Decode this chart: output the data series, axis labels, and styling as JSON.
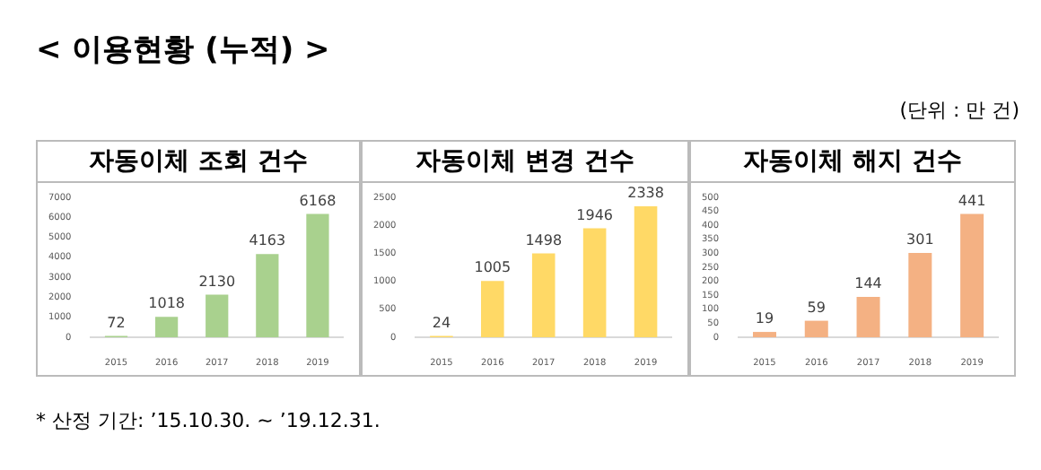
{
  "chart_data": [
    {
      "type": "bar",
      "title": "자동이체 조회 건수",
      "categories": [
        "2015",
        "2016",
        "2017",
        "2018",
        "2019"
      ],
      "values": [
        72,
        1018,
        2130,
        4163,
        6168
      ],
      "color": "#a9d18e",
      "ylim": [
        0,
        7000
      ],
      "yticks": [
        0,
        1000,
        2000,
        3000,
        4000,
        5000,
        6000,
        7000
      ],
      "data_labels": true,
      "annotations": [
        "< 이용현황 (누적) >",
        "(단위 : 만 건)"
      ]
    },
    {
      "type": "bar",
      "title": "자동이체 변경 건수",
      "categories": [
        "2015",
        "2016",
        "2017",
        "2018",
        "2019"
      ],
      "values": [
        24,
        1005,
        1498,
        1946,
        2338
      ],
      "color": "#ffd966",
      "ylim": [
        0,
        2500
      ],
      "yticks": [
        0,
        500,
        1000,
        1500,
        2000,
        2500
      ],
      "data_labels": true
    },
    {
      "type": "bar",
      "title": "자동이체 해지 건수",
      "categories": [
        "2015",
        "2016",
        "2017",
        "2018",
        "2019"
      ],
      "values": [
        19,
        59,
        144,
        301,
        441
      ],
      "color": "#f4b183",
      "ylim": [
        0,
        500
      ],
      "yticks": [
        0,
        50,
        100,
        150,
        200,
        250,
        300,
        350,
        400,
        450,
        500
      ],
      "data_labels": true,
      "annotations": [
        "* 산정 기간: ’15.10.30. ~ ’19.12.31."
      ]
    }
  ]
}
